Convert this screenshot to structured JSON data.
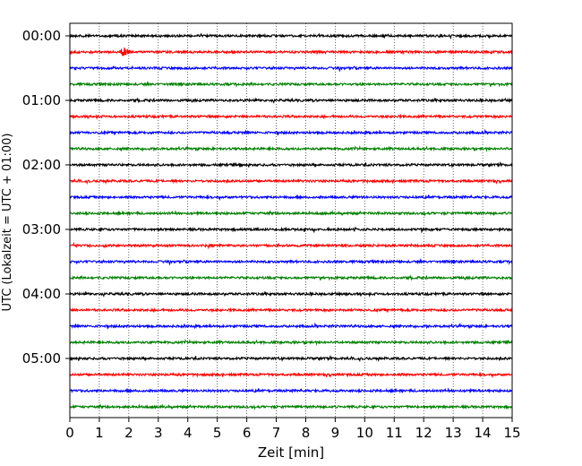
{
  "chart_data": {
    "type": "line",
    "title": "",
    "xlabel": "Zeit  [min]",
    "ylabel": "UTC (Lokalzeit = UTC + 01:00)",
    "xlim": [
      0,
      15
    ],
    "x_ticks": [
      "0",
      "1",
      "2",
      "3",
      "4",
      "5",
      "6",
      "7",
      "8",
      "9",
      "10",
      "11",
      "12",
      "13",
      "14",
      "15"
    ],
    "y_ticks": [
      "00:00",
      "01:00",
      "02:00",
      "03:00",
      "04:00",
      "05:00"
    ],
    "grid": "vertical dotted at each minute",
    "trace_colors": [
      "#000000",
      "#ff0000",
      "#0000ff",
      "#008000"
    ],
    "traces_per_hour": 4,
    "trace_count": 24,
    "trace_start_labels": [
      "00:00",
      "00:15",
      "00:30",
      "00:45",
      "01:00",
      "01:15",
      "01:30",
      "01:45",
      "02:00",
      "02:15",
      "02:30",
      "02:45",
      "03:00",
      "03:15",
      "03:30",
      "03:45",
      "04:00",
      "04:15",
      "04:30",
      "04:45",
      "05:00",
      "05:15",
      "05:30",
      "05:45"
    ],
    "events": [
      {
        "trace_index": 1,
        "minute": 1.85,
        "description": "burst"
      }
    ]
  }
}
